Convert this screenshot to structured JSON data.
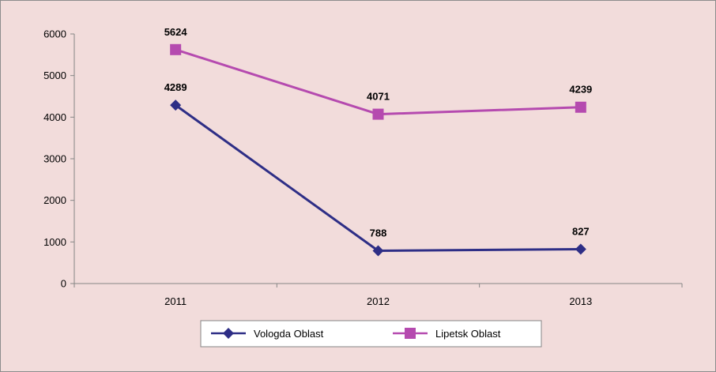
{
  "chart_data": {
    "type": "line",
    "title": "",
    "xlabel": "",
    "ylabel": "",
    "categories": [
      "2011",
      "2012",
      "2013"
    ],
    "ylim": [
      0,
      6000
    ],
    "yticks": [
      0,
      1000,
      2000,
      3000,
      4000,
      5000,
      6000
    ],
    "grid": false,
    "legend_position": "bottom",
    "series": [
      {
        "name": "Vologda Oblast",
        "values": [
          4289,
          788,
          827
        ],
        "color": "#2e2e86",
        "marker": "diamond",
        "labels": [
          "4289",
          "788",
          "827"
        ]
      },
      {
        "name": "Lipetsk Oblast",
        "values": [
          5624,
          4071,
          4239
        ],
        "color": "#b54aaf",
        "marker": "square",
        "labels": [
          "5624",
          "4071",
          "4239"
        ]
      }
    ]
  }
}
